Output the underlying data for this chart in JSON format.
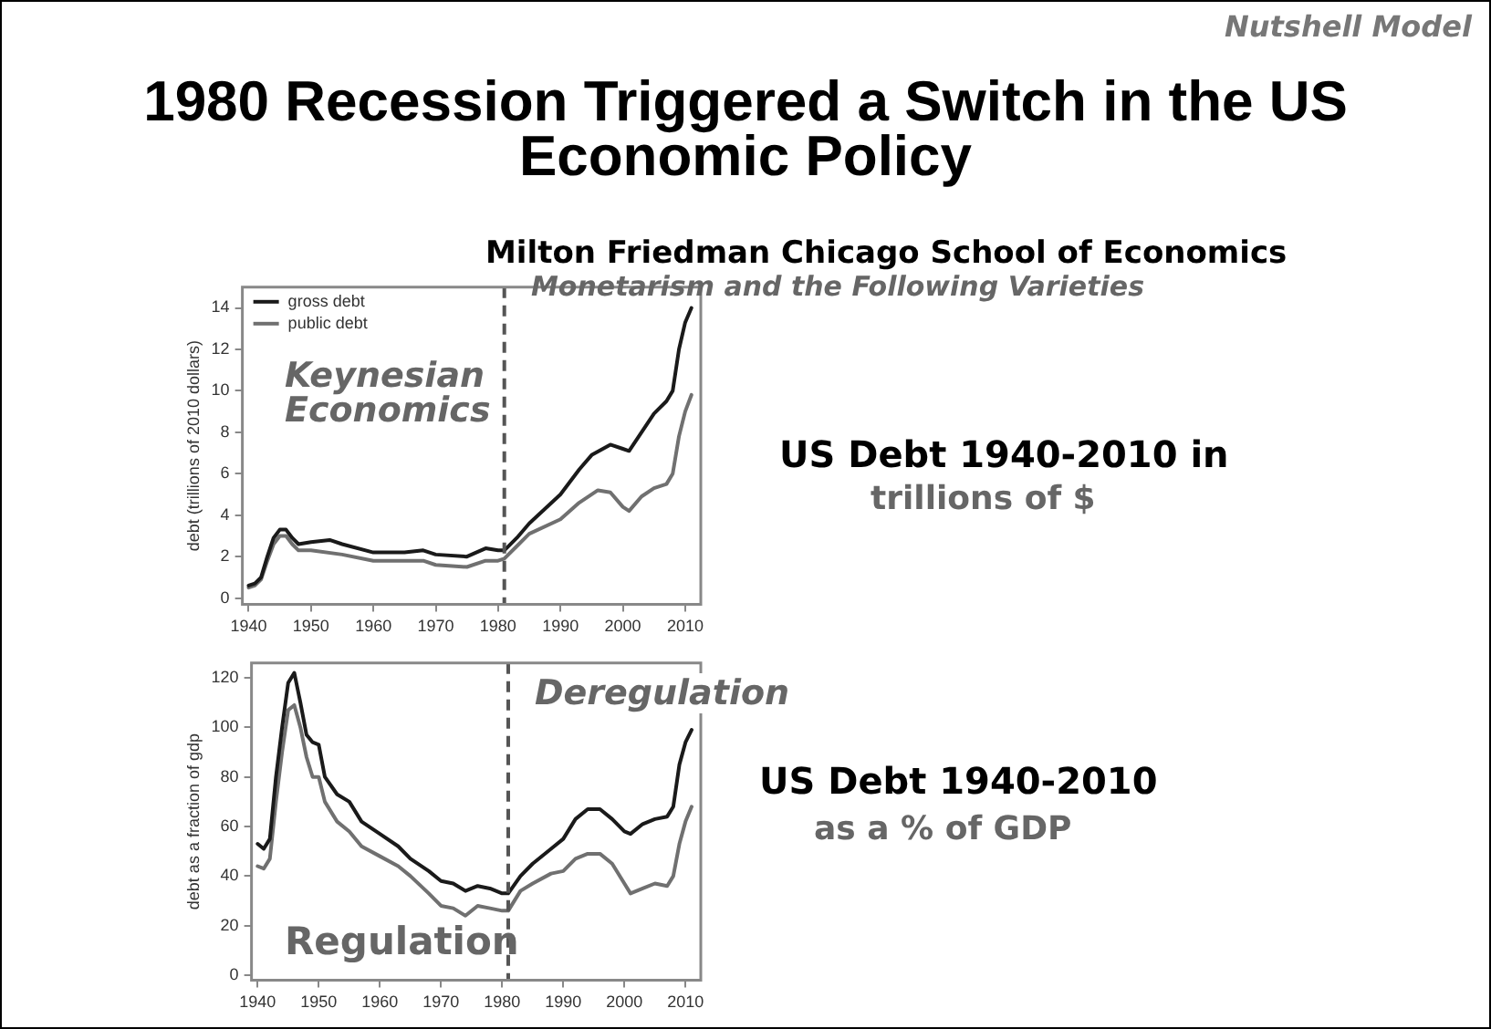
{
  "chart_data": [
    {
      "type": "line",
      "title": "1980 Recession Triggered a Switch in the US Economic Policy",
      "ylabel": "debt (trillions of 2010 dollars)",
      "annotations": [
        "Nutshell Model",
        "Milton Friedman Chicago School of Economics",
        "Monetarism and the Following Varieties",
        "Keynesian Economics",
        "US Debt 1940-2010 in",
        "trillions of $"
      ],
      "series": [
        {
          "name": "gross debt",
          "color": "#1a1a1a",
          "x": [
            1940,
            1941,
            1942,
            1943,
            1944,
            1945,
            1946,
            1947,
            1948,
            1950,
            1953,
            1955,
            1960,
            1965,
            1968,
            1970,
            1975,
            1978,
            1980,
            1981,
            1983,
            1985,
            1990,
            1993,
            1995,
            1998,
            2000,
            2001,
            2003,
            2005,
            2007,
            2008,
            2009,
            2010,
            2011
          ],
          "values": [
            0.6,
            0.7,
            1.0,
            2.0,
            2.9,
            3.3,
            3.3,
            2.9,
            2.6,
            2.7,
            2.8,
            2.6,
            2.2,
            2.2,
            2.3,
            2.1,
            2.0,
            2.4,
            2.3,
            2.3,
            2.9,
            3.6,
            5.0,
            6.2,
            6.9,
            7.4,
            7.2,
            7.1,
            8.0,
            8.9,
            9.5,
            10.0,
            12.0,
            13.3,
            14.0
          ]
        },
        {
          "name": "public debt",
          "color": "#707070",
          "x": [
            1940,
            1941,
            1942,
            1943,
            1944,
            1945,
            1946,
            1947,
            1948,
            1950,
            1955,
            1960,
            1965,
            1968,
            1970,
            1975,
            1978,
            1980,
            1981,
            1983,
            1985,
            1990,
            1993,
            1996,
            1998,
            2000,
            2001,
            2003,
            2005,
            2007,
            2008,
            2009,
            2010,
            2011
          ],
          "values": [
            0.5,
            0.6,
            0.9,
            1.8,
            2.6,
            3.0,
            3.0,
            2.6,
            2.3,
            2.3,
            2.1,
            1.8,
            1.8,
            1.8,
            1.6,
            1.5,
            1.8,
            1.8,
            1.9,
            2.5,
            3.1,
            3.8,
            4.6,
            5.2,
            5.1,
            4.4,
            4.2,
            4.9,
            5.3,
            5.5,
            6.0,
            7.8,
            9.0,
            9.8
          ]
        }
      ],
      "xlim": [
        1939,
        2012.5
      ],
      "xticks": [
        1940,
        1950,
        1960,
        1970,
        1980,
        1990,
        2000,
        2010
      ],
      "ylim": [
        -0.3,
        15
      ],
      "yticks": [
        0,
        2,
        4,
        6,
        8,
        10,
        12,
        14
      ],
      "ref_lines": [
        {
          "axis": "x",
          "value": 1981,
          "color": "#555555",
          "line_style": "dashed"
        }
      ],
      "legend": "top left",
      "grid": false,
      "marker": "none",
      "line_style": "solid"
    },
    {
      "type": "line",
      "ylabel": "debt as a fraction of gdp",
      "annotations": [
        "Deregulation",
        "Regulation",
        "US Debt 1940-2010",
        "as a % of GDP"
      ],
      "series": [
        {
          "color": "#1a1a1a",
          "x": [
            1940,
            1941,
            1942,
            1943,
            1944,
            1945,
            1946,
            1947,
            1948,
            1949,
            1950,
            1951,
            1953,
            1955,
            1957,
            1960,
            1963,
            1965,
            1968,
            1970,
            1972,
            1974,
            1976,
            1978,
            1980,
            1981,
            1983,
            1985,
            1988,
            1990,
            1992,
            1994,
            1996,
            1998,
            2000,
            2001,
            2003,
            2005,
            2007,
            2008,
            2009,
            2010,
            2011
          ],
          "values": [
            53,
            51,
            55,
            80,
            100,
            118,
            122,
            110,
            97,
            94,
            93,
            80,
            73,
            70,
            62,
            57,
            52,
            47,
            42,
            38,
            37,
            34,
            36,
            35,
            33,
            33,
            40,
            45,
            51,
            55,
            63,
            67,
            67,
            63,
            58,
            57,
            61,
            63,
            64,
            68,
            85,
            94,
            99
          ]
        },
        {
          "color": "#707070",
          "x": [
            1940,
            1941,
            1942,
            1943,
            1944,
            1945,
            1946,
            1947,
            1948,
            1949,
            1950,
            1951,
            1953,
            1955,
            1957,
            1960,
            1963,
            1965,
            1968,
            1970,
            1972,
            1974,
            1976,
            1978,
            1980,
            1981,
            1983,
            1985,
            1988,
            1990,
            1992,
            1994,
            1996,
            1998,
            2000,
            2001,
            2003,
            2005,
            2007,
            2008,
            2009,
            2010,
            2011
          ],
          "values": [
            44,
            43,
            47,
            70,
            90,
            107,
            109,
            100,
            88,
            80,
            80,
            70,
            62,
            58,
            52,
            48,
            44,
            40,
            33,
            28,
            27,
            24,
            28,
            27,
            26,
            26,
            34,
            37,
            41,
            42,
            47,
            49,
            49,
            45,
            37,
            33,
            35,
            37,
            36,
            40,
            53,
            62,
            68
          ]
        }
      ],
      "xlim": [
        1939,
        2012.5
      ],
      "xticks": [
        1940,
        1950,
        1960,
        1970,
        1980,
        1990,
        2000,
        2010
      ],
      "ylim": [
        -2,
        126
      ],
      "yticks": [
        0,
        20,
        40,
        60,
        80,
        100,
        120
      ],
      "ref_lines": [
        {
          "axis": "x",
          "value": 1981,
          "color": "#555555",
          "line_style": "dashed"
        }
      ],
      "grid": false,
      "marker": "none",
      "line_style": "solid"
    }
  ]
}
